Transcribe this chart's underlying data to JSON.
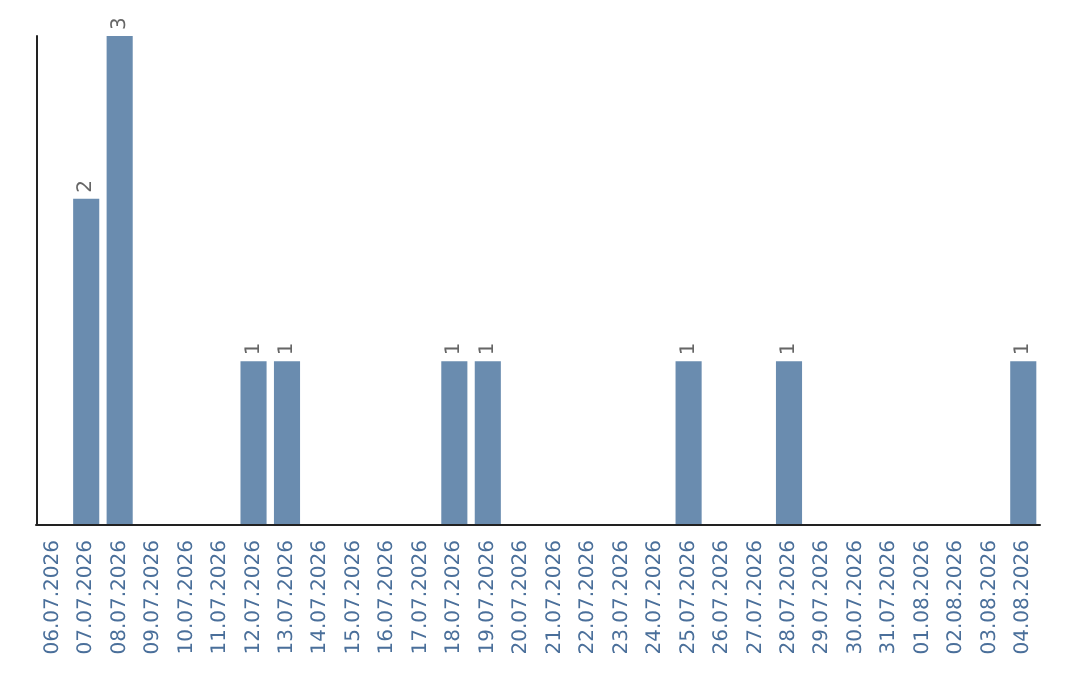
{
  "chart_data": {
    "type": "bar",
    "categories": [
      "06.07.2026",
      "07.07.2026",
      "08.07.2026",
      "09.07.2026",
      "10.07.2026",
      "11.07.2026",
      "12.07.2026",
      "13.07.2026",
      "14.07.2026",
      "15.07.2026",
      "16.07.2026",
      "17.07.2026",
      "18.07.2026",
      "19.07.2026",
      "20.07.2026",
      "21.07.2026",
      "22.07.2026",
      "23.07.2026",
      "24.07.2026",
      "25.07.2026",
      "26.07.2026",
      "27.07.2026",
      "28.07.2026",
      "29.07.2026",
      "30.07.2026",
      "31.07.2026",
      "01.08.2026",
      "02.08.2026",
      "03.08.2026",
      "04.08.2026"
    ],
    "values": [
      0,
      2,
      3,
      0,
      0,
      0,
      1,
      1,
      0,
      0,
      0,
      0,
      1,
      1,
      0,
      0,
      0,
      0,
      0,
      1,
      0,
      0,
      1,
      0,
      0,
      0,
      0,
      0,
      0,
      1
    ],
    "value_labels": [
      null,
      "2",
      "3",
      null,
      null,
      null,
      "1",
      "1",
      null,
      null,
      null,
      null,
      "1",
      "1",
      null,
      null,
      null,
      null,
      null,
      "1",
      null,
      null,
      "1",
      null,
      null,
      null,
      null,
      null,
      null,
      "1"
    ],
    "color": "#6a8caf",
    "relative": false,
    "tick_labels": "x",
    "grid": false
  }
}
